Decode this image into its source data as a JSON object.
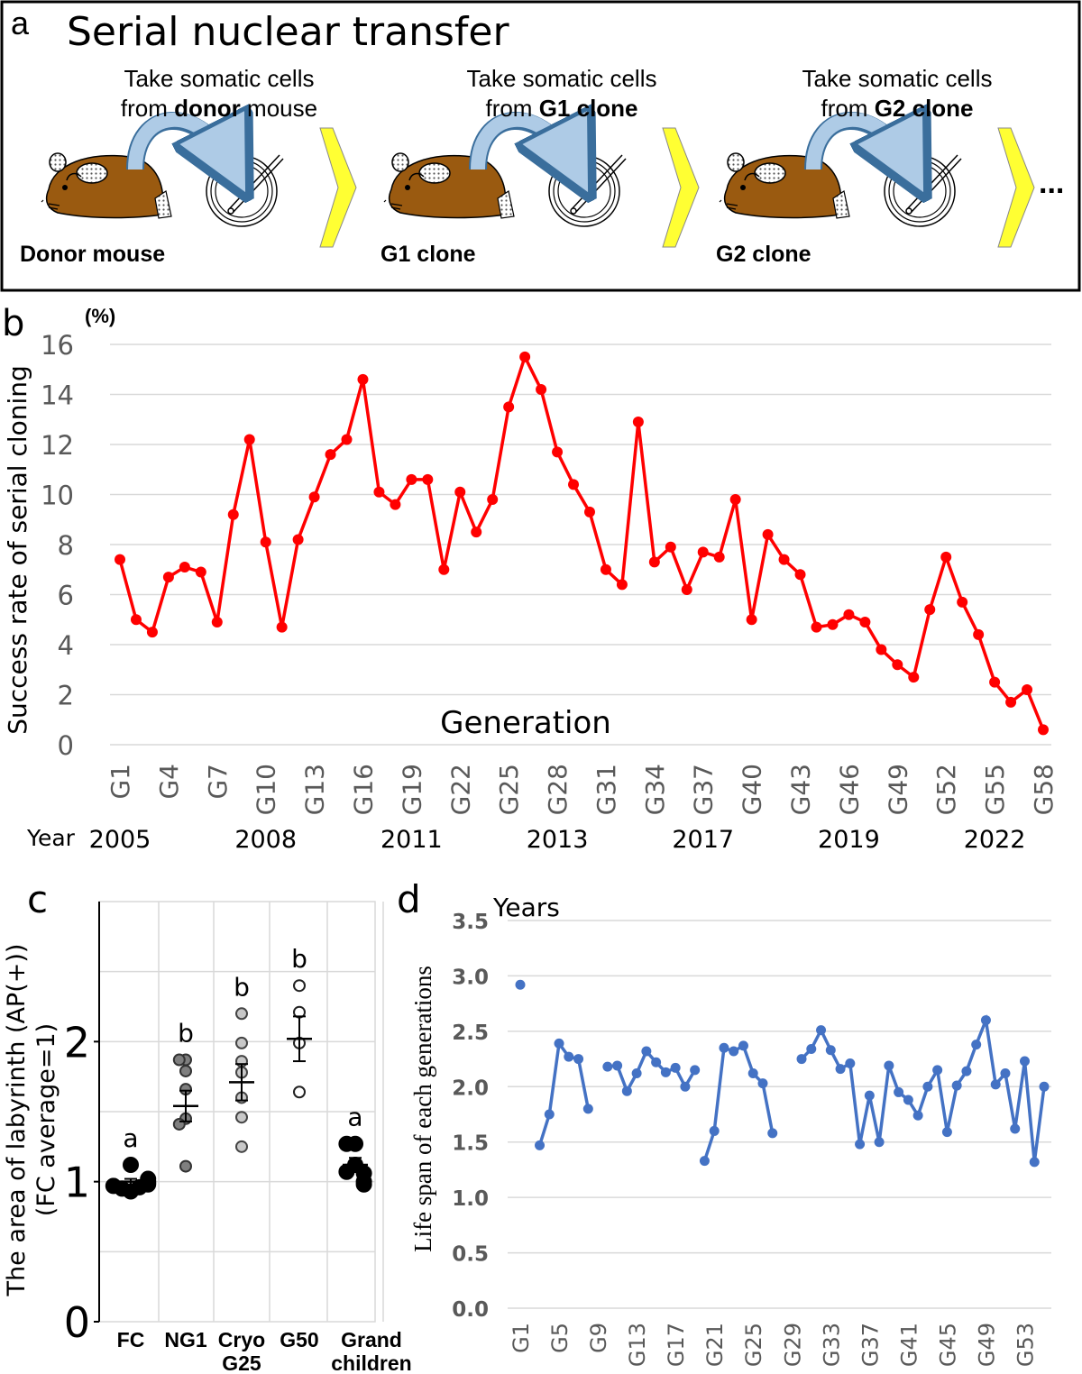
{
  "panel_a": {
    "letter": "a",
    "title": "Serial nuclear transfer",
    "steps": [
      {
        "line1": "Take somatic cells",
        "line2_pre": "from ",
        "line2_bold": "donor",
        "line2_post": " mouse",
        "mouse_label": "Donor mouse"
      },
      {
        "line1": "Take somatic cells",
        "line2_pre": "from ",
        "line2_bold": "G1 clone",
        "line2_post": "",
        "mouse_label": "G1 clone"
      },
      {
        "line1": "Take somatic cells",
        "line2_pre": "from ",
        "line2_bold": "G2 clone",
        "line2_post": "",
        "mouse_label": "G2 clone"
      }
    ],
    "ellipsis": "...",
    "colors": {
      "mouse": "#9a5a10",
      "arrow": "#aecbe6",
      "arrow_edge": "#3a6e9c",
      "chevron": "#ffff33"
    }
  },
  "chart_data": [
    {
      "panel": "b",
      "type": "line",
      "ylabel": "Success rate of serial cloning",
      "yunit": "(%)",
      "xlabel": "Generation",
      "ylim": [
        0,
        16
      ],
      "yticks": [
        0,
        2,
        4,
        6,
        8,
        10,
        12,
        14,
        16
      ],
      "grid": true,
      "color": "#ff0000",
      "x_tick_labels": [
        "G1",
        "G4",
        "G7",
        "G10",
        "G13",
        "G16",
        "G19",
        "G22",
        "G25",
        "G28",
        "G31",
        "G34",
        "G37",
        "G40",
        "G43",
        "G46",
        "G49",
        "G52",
        "G55",
        "G58"
      ],
      "year_label": "Year",
      "years": [
        {
          "label": "2005",
          "generation": 1
        },
        {
          "label": "2008",
          "generation": 10
        },
        {
          "label": "2011",
          "generation": 19
        },
        {
          "label": "2013",
          "generation": 28
        },
        {
          "label": "2017",
          "generation": 37
        },
        {
          "label": "2019",
          "generation": 46
        },
        {
          "label": "2022",
          "generation": 55
        }
      ],
      "generations": [
        1,
        2,
        3,
        4,
        5,
        6,
        7,
        8,
        9,
        10,
        11,
        12,
        13,
        14,
        15,
        16,
        17,
        18,
        19,
        20,
        21,
        22,
        23,
        24,
        25,
        26,
        27,
        28,
        29,
        30,
        31,
        32,
        33,
        34,
        35,
        36,
        37,
        38,
        39,
        40,
        41,
        42,
        43,
        44,
        45,
        46,
        47,
        48,
        49,
        50,
        51,
        52,
        53,
        54,
        55,
        56,
        57,
        58
      ],
      "values": [
        7.4,
        5.0,
        4.5,
        6.7,
        7.1,
        6.9,
        4.9,
        9.2,
        12.2,
        8.1,
        4.7,
        8.2,
        9.9,
        11.6,
        12.2,
        14.6,
        10.1,
        9.6,
        10.6,
        10.6,
        7.0,
        10.1,
        8.5,
        9.8,
        13.5,
        15.5,
        14.2,
        11.7,
        10.4,
        9.3,
        7.0,
        6.4,
        12.9,
        7.3,
        7.9,
        6.2,
        7.7,
        7.5,
        9.8,
        5.0,
        8.4,
        7.4,
        6.8,
        4.7,
        4.8,
        5.2,
        4.9,
        3.8,
        3.2,
        2.7,
        5.4,
        7.5,
        5.7,
        4.4,
        2.5,
        1.7,
        2.2,
        0.6
      ]
    },
    {
      "panel": "c",
      "type": "scatter",
      "ylabel": "The area of labyrinth (AP(+))",
      "ylabel2": "(FC average=1)",
      "ylim": [
        0,
        3
      ],
      "yticks": [
        0,
        1,
        2
      ],
      "grid": true,
      "groups": [
        {
          "label": "FC",
          "label_lines": [
            "FC"
          ],
          "letter": "a",
          "mean": 1.0,
          "sem": 0.02,
          "style": "filled-black",
          "values": [
            0.93,
            0.95,
            0.96,
            0.97,
            0.98,
            0.99,
            1.0,
            1.02,
            1.12
          ]
        },
        {
          "label": "NG1",
          "label_lines": [
            "NG1"
          ],
          "letter": "b",
          "mean": 1.54,
          "sem": 0.11,
          "style": "filled-gray",
          "values": [
            1.87,
            1.87,
            1.79,
            1.66,
            1.45,
            1.41,
            1.11
          ]
        },
        {
          "label": "Cryo G25",
          "label_lines": [
            "Cryo",
            "G25"
          ],
          "letter": "b",
          "mean": 1.71,
          "sem": 0.13,
          "style": "light-gray",
          "values": [
            2.2,
            1.99,
            1.86,
            1.78,
            1.6,
            1.46,
            1.25
          ]
        },
        {
          "label": "G50",
          "label_lines": [
            "G50"
          ],
          "letter": "b",
          "mean": 2.02,
          "sem": 0.16,
          "style": "open",
          "values": [
            2.4,
            2.21,
            1.99,
            1.64
          ]
        },
        {
          "label": "Grand children",
          "label_lines": [
            "Grand",
            "children"
          ],
          "letter": "a",
          "mean": 1.12,
          "sem": 0.05,
          "style": "filled-black",
          "values": [
            1.27,
            1.27,
            1.12,
            1.07,
            1.06,
            1.0,
            0.98
          ]
        }
      ]
    },
    {
      "panel": "d",
      "type": "line",
      "ylabel": "Life span of each generations",
      "yunit": "Years",
      "ylim": [
        0,
        3.5
      ],
      "yticks": [
        "0.0",
        "0.5",
        "1.0",
        "1.5",
        "2.0",
        "2.5",
        "3.0",
        "3.5"
      ],
      "grid": true,
      "color": "#4472c4",
      "x_tick_labels": [
        "G1",
        "G5",
        "G9",
        "G13",
        "G17",
        "G21",
        "G25",
        "G29",
        "G33",
        "G37",
        "G41",
        "G45",
        "G49",
        "G53"
      ],
      "x_tick_generations": [
        1,
        5,
        9,
        13,
        17,
        21,
        25,
        29,
        33,
        37,
        41,
        45,
        49,
        53
      ],
      "segments": [
        {
          "generations": [
            1
          ],
          "values": [
            2.92
          ]
        },
        {
          "generations": [
            3,
            4,
            5,
            6,
            7,
            8
          ],
          "values": [
            1.47,
            1.75,
            2.39,
            2.27,
            2.25,
            1.8
          ]
        },
        {
          "generations": [
            10,
            11,
            12,
            13,
            14,
            15,
            16,
            17,
            18,
            19
          ],
          "values": [
            2.18,
            2.19,
            1.96,
            2.12,
            2.32,
            2.22,
            2.13,
            2.17,
            2.0,
            2.15
          ]
        },
        {
          "generations": [
            20,
            21,
            22,
            23,
            24,
            25,
            26,
            27
          ],
          "values": [
            1.33,
            1.6,
            2.35,
            2.32,
            2.37,
            2.12,
            2.03,
            1.58
          ]
        },
        {
          "generations": [
            30,
            31,
            32,
            33,
            34,
            35,
            36,
            37,
            38,
            39,
            40,
            41,
            42,
            43,
            44,
            45,
            46,
            47,
            48,
            49,
            50,
            51,
            52,
            53,
            54,
            55
          ],
          "values": [
            2.25,
            2.34,
            2.51,
            2.33,
            2.16,
            2.21,
            1.48,
            1.92,
            1.5,
            2.19,
            1.95,
            1.88,
            1.74,
            2.0,
            2.15,
            1.59,
            2.01,
            2.14,
            2.38,
            2.6,
            2.02,
            2.12,
            1.62,
            2.23,
            1.32,
            2.0
          ]
        }
      ]
    }
  ]
}
